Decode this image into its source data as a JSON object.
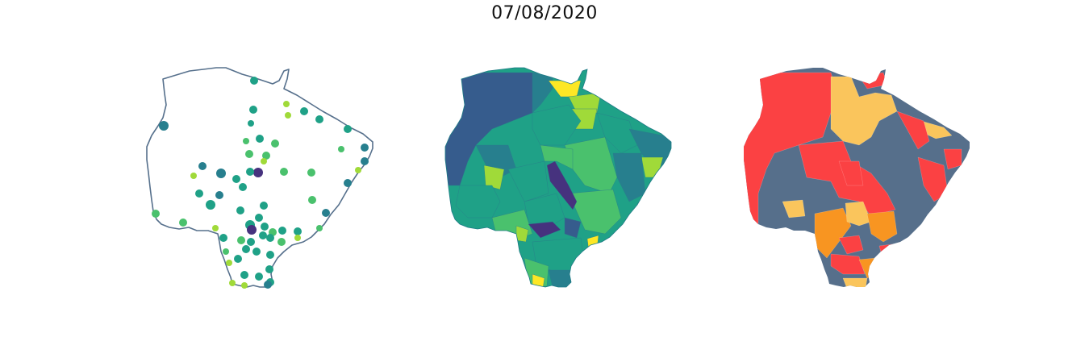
{
  "title": "07/08/2020",
  "colors": {
    "outline": "#56708c",
    "viridis": [
      "#46327e",
      "#365c8d",
      "#277f8e",
      "#1fa187",
      "#4ac16d",
      "#a0da39",
      "#fde725"
    ],
    "classes": [
      "#fb4143",
      "#fac55c",
      "#566f8b",
      "#f89521"
    ]
  },
  "panels": [
    {
      "name": "point-map",
      "kind": "points"
    },
    {
      "name": "choropleth-continuous",
      "kind": "choropleth"
    },
    {
      "name": "choropleth-classes",
      "kind": "classes"
    }
  ]
}
